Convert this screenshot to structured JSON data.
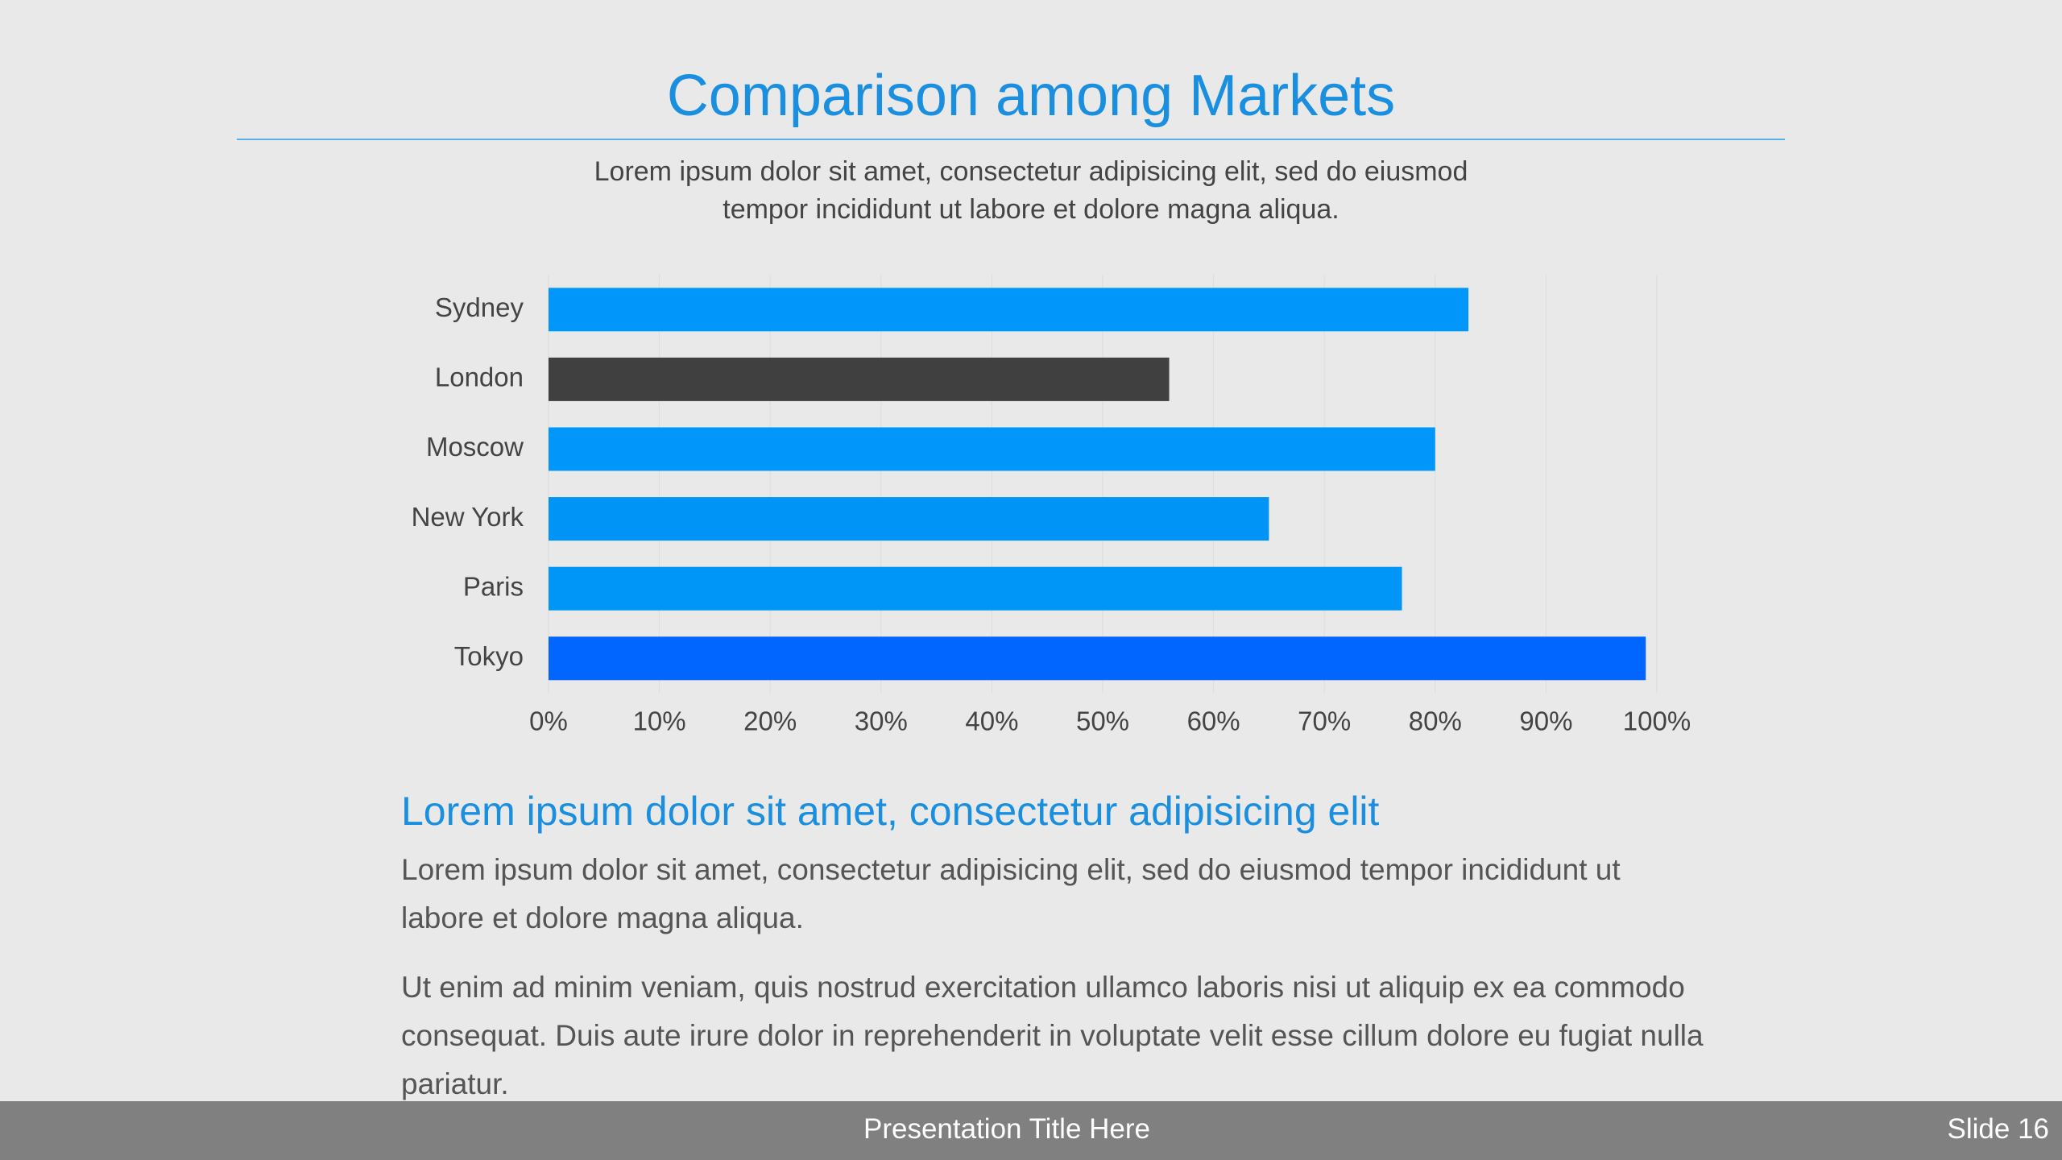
{
  "slide": {
    "title": "Comparison among Markets",
    "subtitle": "Lorem ipsum dolor sit amet, consectetur adipisicing elit, sed do eiusmod tempor incididunt ut labore et dolore magna aliqua.",
    "heading": "Lorem ipsum dolor sit amet, consectetur adipisicing elit",
    "paragraphs": [
      "Lorem ipsum dolor sit amet, consectetur adipisicing elit, sed do eiusmod tempor incididunt ut labore et dolore magna aliqua.",
      "Ut enim ad minim veniam, quis nostrud exercitation ullamco laboris nisi ut aliquip ex ea commodo consequat. Duis aute irure dolor in reprehenderit in voluptate velit esse cillum dolore eu fugiat nulla pariatur."
    ],
    "footer": "Presentation Title Here",
    "slide_number": "Slide 16"
  },
  "chart_data": {
    "type": "hbar",
    "categories": [
      "Sydney",
      "London",
      "Moscow",
      "New York",
      "Paris",
      "Tokyo"
    ],
    "values": [
      83,
      56,
      80,
      65,
      77,
      99
    ],
    "colors": [
      "#0096fa",
      "#404040",
      "#0096fa",
      "#0094f6",
      "#0096f8",
      "#0066ff"
    ],
    "xlim": [
      0,
      100
    ],
    "xticks": [
      {
        "value": 0,
        "label": "0%"
      },
      {
        "value": 10,
        "label": "10%"
      },
      {
        "value": 20,
        "label": "20%"
      },
      {
        "value": 30,
        "label": "30%"
      },
      {
        "value": 40,
        "label": "40%"
      },
      {
        "value": 50,
        "label": "50%"
      },
      {
        "value": 60,
        "label": "60%"
      },
      {
        "value": 70,
        "label": "70%"
      },
      {
        "value": 80,
        "label": "80%"
      },
      {
        "value": 90,
        "label": "90%"
      },
      {
        "value": 100,
        "label": "100%"
      }
    ],
    "grid": true
  }
}
